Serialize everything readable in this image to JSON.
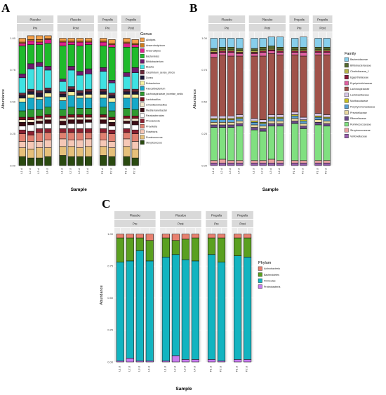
{
  "panels": [
    {
      "letter": "A",
      "ylabel": "Abundance",
      "xlabel": "Sample",
      "legend_title": "Genus",
      "y_ticks": [
        "0.00",
        "0.25",
        "0.50",
        "0.75",
        "1.00"
      ]
    },
    {
      "letter": "B",
      "ylabel": "Abundance",
      "xlabel": "Sample",
      "legend_title": "Family",
      "y_ticks": [
        "0.00",
        "0.25",
        "0.50",
        "0.75",
        "1.00"
      ]
    },
    {
      "letter": "C",
      "ylabel": "Abundance",
      "xlabel": "Sample",
      "legend_title": "Phylum",
      "y_ticks": [
        "0.00",
        "0.25",
        "0.50",
        "0.75",
        "1.00"
      ]
    }
  ],
  "chart_data": [
    {
      "type": "bar",
      "stacked": true,
      "ylim": [
        0,
        1
      ],
      "grid": true,
      "legend_position": "right",
      "facets": [
        {
          "group": "Placebo",
          "time": "Pre",
          "samples": [
            "L1 d",
            "L2 d",
            "L3 d",
            "L4 d"
          ]
        },
        {
          "group": "Placebo",
          "time": "Post",
          "samples": [
            "L1 d",
            "L2 d",
            "L3 d",
            "L4 d"
          ]
        },
        {
          "group": "Propolis",
          "time": "Pre",
          "samples": [
            "P1 d",
            "P2 d"
          ]
        },
        {
          "group": "Propolis",
          "time": "Post",
          "samples": [
            "P1 d",
            "P2 d"
          ]
        }
      ],
      "series_order": [
        "Streptococcus",
        "Ruminococcus",
        "Roseburia",
        "Prevotella",
        "Phocaeicola",
        "Parabacteroides",
        "Mediterraneibacter",
        "Limosilactobacillus",
        "Lactobacillus",
        "Lachnospiraceae_incertae_sedis",
        "Faecalibacterium",
        "Eubacterium",
        "Dorea",
        "Clostridium_sensu_stricto",
        "Blautia",
        "Bifidobacterium",
        "Bacteroides",
        "Anaerostipes",
        "Anaerobutyricum",
        "Alistipes"
      ],
      "colors": {
        "Alistipes": "#f4a04a",
        "Anaerobutyricum": "#cc7a1a",
        "Anaerostipes": "#e01f8a",
        "Bacteroides": "#1fba2b",
        "Bifidobacterium": "#6e1a6e",
        "Blautia": "#3fe2e2",
        "Clostridium_sensu_stricto": "#6a2a3a",
        "Dorea": "#1a1a3a",
        "Eubacterium": "#f7f2a0",
        "Faecalibacterium": "#17a8c8",
        "Lachnospiraceae_incertae_sedis": "#2f9a30",
        "Lactobacillus": "#7a1020",
        "Limosilactobacillus": "#f4e8cc",
        "Mediterraneibacter": "#3a0c14",
        "Parabacteroides": "#ffffff",
        "Phocaeicola": "#8a2030",
        "Prevotella": "#e08070",
        "Roseburia": "#f6c8b6",
        "Ruminococcus": "#e6c07a",
        "Streptococcus": "#2a4a10"
      },
      "series": [
        {
          "name": "Alistipes",
          "values": [
            0.03,
            0.03,
            0.03,
            0.02,
            0.02,
            0.02,
            0.02,
            0.02,
            0.02,
            0.03,
            0.03,
            0.03
          ]
        },
        {
          "name": "Anaerobutyricum",
          "values": [
            0.01,
            0.01,
            0.02,
            0.01,
            0.01,
            0.01,
            0.01,
            0.01,
            0.01,
            0.01,
            0.01,
            0.01
          ]
        },
        {
          "name": "Anaerostipes",
          "values": [
            0.02,
            0.03,
            0.02,
            0.03,
            0.03,
            0.02,
            0.03,
            0.02,
            0.03,
            0.02,
            0.03,
            0.02
          ]
        },
        {
          "name": "Bacteroides",
          "values": [
            0.22,
            0.15,
            0.14,
            0.18,
            0.26,
            0.17,
            0.2,
            0.19,
            0.17,
            0.26,
            0.2,
            0.16
          ]
        },
        {
          "name": "Bifidobacterium",
          "values": [
            0.03,
            0.04,
            0.03,
            0.03,
            0.02,
            0.03,
            0.03,
            0.04,
            0.03,
            0.02,
            0.03,
            0.04
          ]
        },
        {
          "name": "Blautia",
          "values": [
            0.12,
            0.16,
            0.19,
            0.14,
            0.08,
            0.13,
            0.12,
            0.12,
            0.14,
            0.08,
            0.1,
            0.13
          ]
        },
        {
          "name": "Clostridium_sensu_stricto",
          "values": [
            0.02,
            0.02,
            0.02,
            0.02,
            0.02,
            0.02,
            0.02,
            0.02,
            0.02,
            0.02,
            0.02,
            0.02
          ]
        },
        {
          "name": "Dorea",
          "values": [
            0.02,
            0.02,
            0.03,
            0.02,
            0.02,
            0.02,
            0.02,
            0.02,
            0.02,
            0.02,
            0.02,
            0.02
          ]
        },
        {
          "name": "Eubacterium",
          "values": [
            0.03,
            0.03,
            0.02,
            0.03,
            0.03,
            0.03,
            0.02,
            0.03,
            0.03,
            0.03,
            0.03,
            0.03
          ]
        },
        {
          "name": "Faecalibacterium",
          "values": [
            0.07,
            0.09,
            0.08,
            0.08,
            0.07,
            0.09,
            0.08,
            0.08,
            0.07,
            0.07,
            0.08,
            0.09
          ]
        },
        {
          "name": "Lachnospiraceae_incertae_sedis",
          "values": [
            0.05,
            0.06,
            0.05,
            0.06,
            0.05,
            0.06,
            0.05,
            0.05,
            0.06,
            0.05,
            0.06,
            0.05
          ]
        },
        {
          "name": "Lactobacillus",
          "values": [
            0.02,
            0.02,
            0.02,
            0.02,
            0.02,
            0.02,
            0.02,
            0.02,
            0.02,
            0.02,
            0.02,
            0.02
          ]
        },
        {
          "name": "Limosilactobacillus",
          "values": [
            0.02,
            0.02,
            0.02,
            0.02,
            0.02,
            0.02,
            0.02,
            0.02,
            0.02,
            0.02,
            0.02,
            0.02
          ]
        },
        {
          "name": "Mediterraneibacter",
          "values": [
            0.03,
            0.02,
            0.02,
            0.03,
            0.03,
            0.03,
            0.03,
            0.02,
            0.03,
            0.03,
            0.02,
            0.03
          ]
        },
        {
          "name": "Parabacteroides",
          "values": [
            0.03,
            0.05,
            0.04,
            0.04,
            0.03,
            0.04,
            0.04,
            0.05,
            0.04,
            0.03,
            0.04,
            0.04
          ]
        },
        {
          "name": "Phocaeicola",
          "values": [
            0.03,
            0.03,
            0.03,
            0.03,
            0.03,
            0.03,
            0.03,
            0.03,
            0.03,
            0.03,
            0.03,
            0.03
          ]
        },
        {
          "name": "Prevotella",
          "values": [
            0.06,
            0.05,
            0.07,
            0.06,
            0.05,
            0.06,
            0.06,
            0.05,
            0.06,
            0.06,
            0.05,
            0.06
          ]
        },
        {
          "name": "Roseburia",
          "values": [
            0.05,
            0.06,
            0.05,
            0.06,
            0.06,
            0.05,
            0.06,
            0.06,
            0.05,
            0.05,
            0.06,
            0.06
          ]
        },
        {
          "name": "Ruminococcus",
          "values": [
            0.07,
            0.07,
            0.08,
            0.07,
            0.07,
            0.08,
            0.07,
            0.08,
            0.07,
            0.07,
            0.08,
            0.07
          ]
        },
        {
          "name": "Streptococcus",
          "values": [
            0.07,
            0.06,
            0.06,
            0.07,
            0.08,
            0.07,
            0.07,
            0.07,
            0.08,
            0.07,
            0.07,
            0.06
          ]
        }
      ]
    },
    {
      "type": "bar",
      "stacked": true,
      "ylim": [
        0,
        1
      ],
      "grid": true,
      "legend_position": "right",
      "facets": [
        {
          "group": "Placebo",
          "time": "Pre",
          "samples": [
            "L1 d",
            "L2 d",
            "L3 d",
            "L4 d"
          ]
        },
        {
          "group": "Placebo",
          "time": "Post",
          "samples": [
            "L1 d",
            "L2 d",
            "L3 d",
            "L4 d"
          ]
        },
        {
          "group": "Propolis",
          "time": "Pre",
          "samples": [
            "P1 d",
            "P2 d"
          ]
        },
        {
          "group": "Propolis",
          "time": "Post",
          "samples": [
            "P1 d",
            "P2 d"
          ]
        }
      ],
      "series_order": [
        "Veillonellaceae",
        "Streptococcaceae",
        "Ruminococcaceae",
        "Rikenellaceae",
        "Prevotellaceae",
        "Porphyromonadaceae",
        "Muribaculaceae",
        "Lactobacillaceae",
        "Lachnospiraceae",
        "Erysipelotrichaceae",
        "Eggerthellaceae",
        "Clostridiaceae_1",
        "Bifidobacteriaceae",
        "Bacteroidaceae"
      ],
      "colors": {
        "Bacteroidaceae": "#87ceeb",
        "Bifidobacteriaceae": "#556b2f",
        "Clostridiaceae_1": "#b5b34a",
        "Eggerthellaceae": "#8a1a3a",
        "Erysipelotrichaceae": "#e060a0",
        "Lachnospiraceae": "#a0524a",
        "Lactobacillaceae": "#d8c8e8",
        "Muribaculaceae": "#c8c020",
        "Porphyromonadaceae": "#5aa0d0",
        "Prevotellaceae": "#e8d8a0",
        "Rikenellaceae": "#6a4a8a",
        "Ruminococcaceae": "#80e080",
        "Streptococcaceae": "#e8a0a0",
        "Veillonellaceae": "#9a60b0"
      },
      "series": [
        {
          "name": "Bacteroidaceae",
          "values": [
            0.08,
            0.07,
            0.07,
            0.08,
            0.08,
            0.07,
            0.07,
            0.08,
            0.07,
            0.08,
            0.07,
            0.07
          ]
        },
        {
          "name": "Bifidobacteriaceae",
          "values": [
            0.02,
            0.02,
            0.02,
            0.02,
            0.02,
            0.02,
            0.02,
            0.02,
            0.02,
            0.02,
            0.02,
            0.02
          ]
        },
        {
          "name": "Clostridiaceae_1",
          "values": [
            0.01,
            0.01,
            0.01,
            0.01,
            0.01,
            0.01,
            0.01,
            0.01,
            0.01,
            0.01,
            0.01,
            0.01
          ]
        },
        {
          "name": "Eggerthellaceae",
          "values": [
            0.01,
            0.01,
            0.01,
            0.01,
            0.01,
            0.01,
            0.01,
            0.01,
            0.01,
            0.01,
            0.01,
            0.01
          ]
        },
        {
          "name": "Erysipelotrichaceae",
          "values": [
            0.03,
            0.02,
            0.03,
            0.02,
            0.02,
            0.03,
            0.02,
            0.02,
            0.02,
            0.03,
            0.02,
            0.02
          ]
        },
        {
          "name": "Lachnospiraceae",
          "values": [
            0.46,
            0.48,
            0.47,
            0.46,
            0.49,
            0.5,
            0.48,
            0.47,
            0.45,
            0.48,
            0.46,
            0.47
          ]
        },
        {
          "name": "Lactobacillaceae",
          "values": [
            0.02,
            0.02,
            0.02,
            0.02,
            0.02,
            0.02,
            0.02,
            0.02,
            0.02,
            0.02,
            0.02,
            0.02
          ]
        },
        {
          "name": "Muribaculaceae",
          "values": [
            0.01,
            0.01,
            0.01,
            0.01,
            0.01,
            0.01,
            0.01,
            0.01,
            0.01,
            0.01,
            0.01,
            0.01
          ]
        },
        {
          "name": "Porphyromonadaceae",
          "values": [
            0.02,
            0.02,
            0.02,
            0.02,
            0.02,
            0.02,
            0.02,
            0.02,
            0.02,
            0.02,
            0.02,
            0.02
          ]
        },
        {
          "name": "Prevotellaceae",
          "values": [
            0.02,
            0.02,
            0.02,
            0.02,
            0.02,
            0.02,
            0.02,
            0.02,
            0.02,
            0.02,
            0.02,
            0.02
          ]
        },
        {
          "name": "Rikenellaceae",
          "values": [
            0.02,
            0.02,
            0.02,
            0.02,
            0.02,
            0.02,
            0.02,
            0.02,
            0.02,
            0.02,
            0.02,
            0.02
          ]
        },
        {
          "name": "Ruminococcaceae",
          "values": [
            0.26,
            0.25,
            0.26,
            0.27,
            0.24,
            0.23,
            0.26,
            0.27,
            0.29,
            0.25,
            0.28,
            0.27
          ]
        },
        {
          "name": "Streptococcaceae",
          "values": [
            0.02,
            0.03,
            0.02,
            0.02,
            0.02,
            0.02,
            0.03,
            0.02,
            0.02,
            0.02,
            0.02,
            0.02
          ]
        },
        {
          "name": "Veillonellaceae",
          "values": [
            0.02,
            0.02,
            0.02,
            0.02,
            0.02,
            0.02,
            0.02,
            0.02,
            0.02,
            0.02,
            0.02,
            0.02
          ]
        }
      ]
    },
    {
      "type": "bar",
      "stacked": true,
      "ylim": [
        0,
        1
      ],
      "grid": true,
      "legend_position": "right",
      "facets": [
        {
          "group": "Placebo",
          "time": "Pre",
          "samples": [
            "L1 d",
            "L2 d",
            "L3 d",
            "L4 d"
          ]
        },
        {
          "group": "Placebo",
          "time": "Post",
          "samples": [
            "L1 d",
            "L2 d",
            "L3 d",
            "L4 d"
          ]
        },
        {
          "group": "Propolis",
          "time": "Pre",
          "samples": [
            "P1 d",
            "P2 d"
          ]
        },
        {
          "group": "Propolis",
          "time": "Post",
          "samples": [
            "P1 d",
            "P2 d"
          ]
        }
      ],
      "series_order": [
        "Proteobacteria",
        "Firmicutes",
        "Bacteroidetes",
        "Actinobacteria"
      ],
      "colors": {
        "Actinobacteria": "#e8806e",
        "Bacteroidetes": "#5aa020",
        "Firmicutes": "#12b4c0",
        "Proteobacteria": "#c77cee"
      },
      "series": [
        {
          "name": "Actinobacteria",
          "values": [
            0.03,
            0.03,
            0.03,
            0.05,
            0.03,
            0.05,
            0.04,
            0.03,
            0.03,
            0.03,
            0.03,
            0.03
          ]
        },
        {
          "name": "Bacteroidetes",
          "values": [
            0.19,
            0.18,
            0.1,
            0.16,
            0.15,
            0.11,
            0.16,
            0.18,
            0.13,
            0.19,
            0.14,
            0.15
          ]
        },
        {
          "name": "Firmicutes",
          "values": [
            0.77,
            0.76,
            0.86,
            0.78,
            0.81,
            0.79,
            0.78,
            0.77,
            0.82,
            0.77,
            0.81,
            0.8
          ]
        },
        {
          "name": "Proteobacteria",
          "values": [
            0.01,
            0.03,
            0.01,
            0.01,
            0.01,
            0.05,
            0.02,
            0.02,
            0.02,
            0.01,
            0.02,
            0.02
          ]
        }
      ]
    }
  ]
}
